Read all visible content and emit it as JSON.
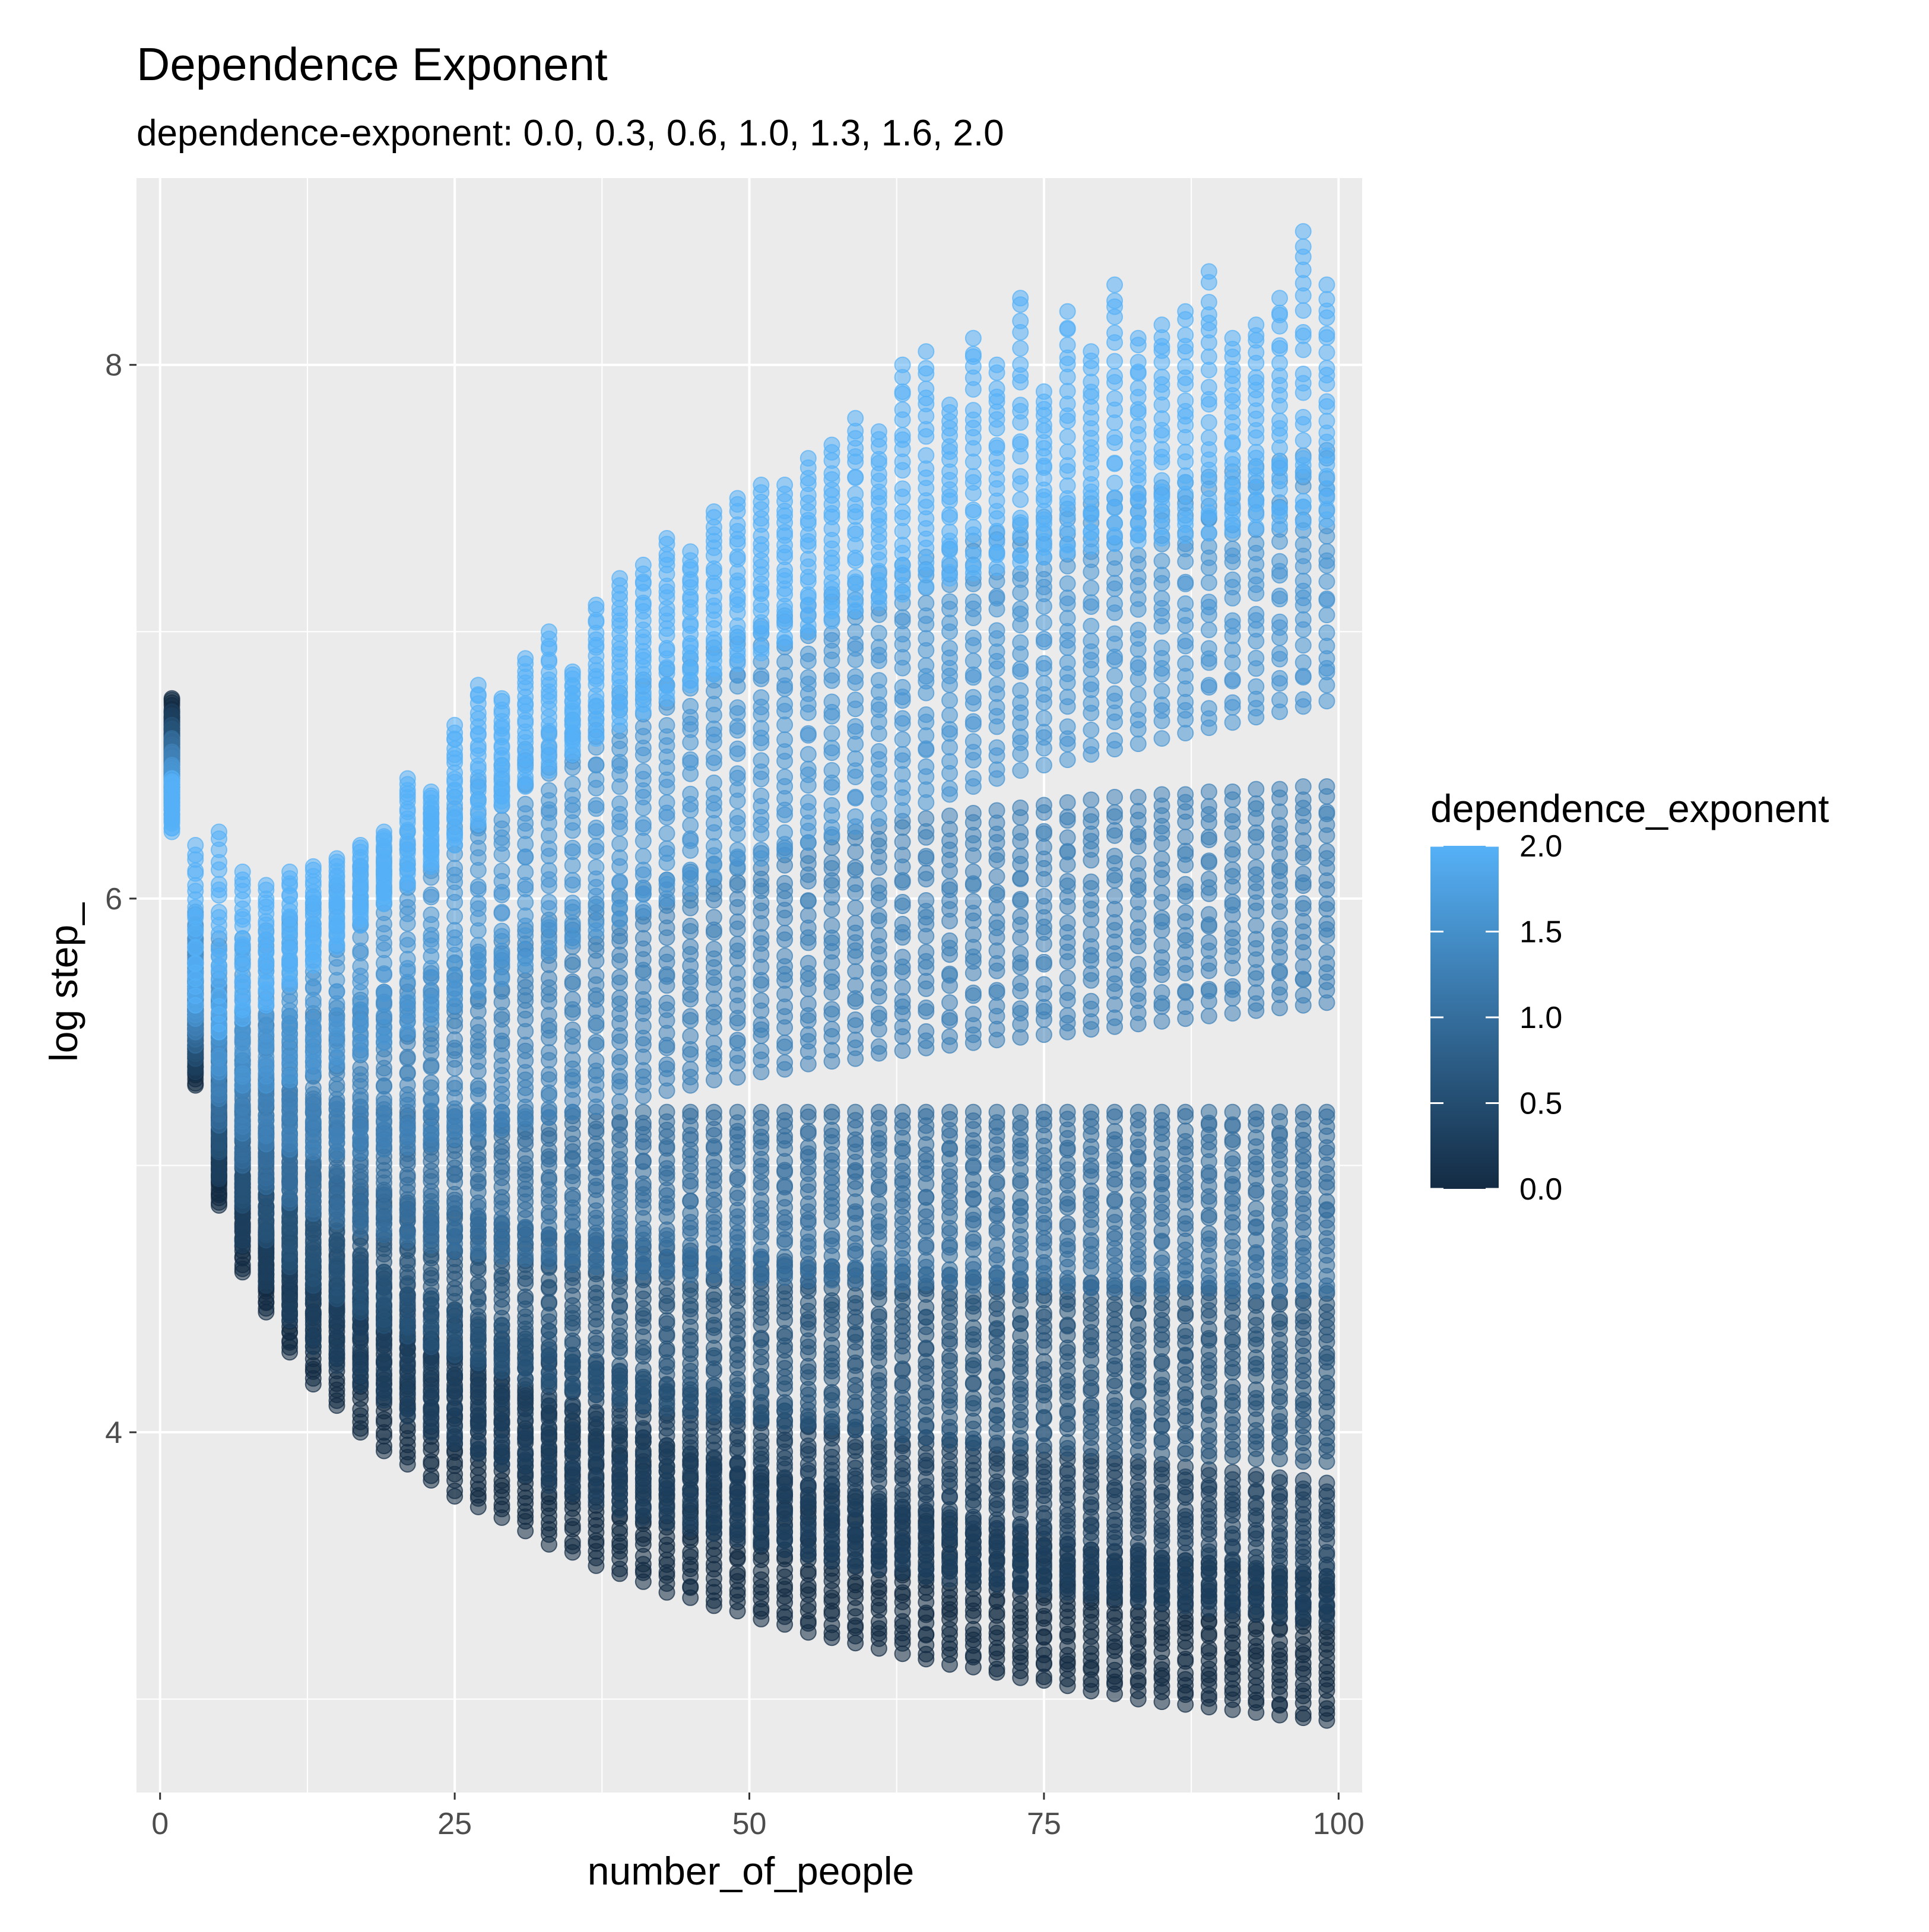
{
  "chart_data": {
    "type": "scatter",
    "title": "Dependence Exponent",
    "subtitle": "dependence-exponent: 0.0, 0.3, 0.6, 1.0, 1.3, 1.6, 2.0",
    "xlabel": "number_of_people",
    "ylabel": "log step_",
    "xlim": [
      -2,
      102
    ],
    "ylim": [
      2.65,
      8.7
    ],
    "x_ticks": [
      0,
      25,
      50,
      75,
      100
    ],
    "x_tick_labels": [
      "0",
      "25",
      "50",
      "75",
      "100"
    ],
    "x_minor_ticks": [
      12.5,
      37.5,
      62.5,
      87.5
    ],
    "y_ticks": [
      4,
      6,
      8
    ],
    "y_tick_labels": [
      "4",
      "6",
      "8"
    ],
    "y_minor_ticks": [
      3,
      5,
      7
    ],
    "grid": true,
    "point_alpha": 0.55,
    "colorbar": {
      "title": "dependence_exponent",
      "min": 0.0,
      "max": 2.0,
      "ticks": [
        0.0,
        0.5,
        1.0,
        1.5,
        2.0
      ],
      "tick_labels": [
        "0.0",
        "0.5",
        "1.0",
        "1.5",
        "2.0"
      ],
      "low_color": "#132b43",
      "high_color": "#56b1f7",
      "placement": "right"
    },
    "colors": {
      "panel_background": "#ebebeb",
      "grid_major": "#ffffff",
      "grid_minor": "#ffffff",
      "axis_text": "#4d4d4d",
      "title_text": "#000000"
    },
    "x_values": [
      1,
      3,
      5,
      7,
      9,
      11,
      13,
      15,
      17,
      19,
      21,
      23,
      25,
      27,
      29,
      31,
      33,
      35,
      37,
      39,
      41,
      43,
      45,
      47,
      49,
      51,
      53,
      55,
      57,
      59,
      61,
      63,
      65,
      67,
      69,
      71,
      73,
      75,
      77,
      79,
      81,
      83,
      85,
      87,
      89,
      91,
      93,
      95,
      97,
      99
    ],
    "series": [
      {
        "dependence_exponent": 0.0,
        "x": [
          1,
          3,
          5,
          7,
          9,
          11,
          13,
          15,
          17,
          19,
          21,
          23,
          25,
          27,
          29,
          31,
          33,
          35,
          37,
          39,
          41,
          43,
          45,
          47,
          49,
          51,
          53,
          55,
          57,
          59,
          61,
          63,
          65,
          67,
          69,
          71,
          73,
          75,
          77,
          79,
          81,
          83,
          85,
          87,
          89,
          91,
          93,
          95,
          97,
          99
        ],
        "y_min": [
          6.55,
          5.3,
          4.85,
          4.6,
          4.45,
          4.3,
          4.18,
          4.1,
          4.0,
          3.93,
          3.88,
          3.82,
          3.76,
          3.72,
          3.68,
          3.63,
          3.58,
          3.55,
          3.5,
          3.47,
          3.44,
          3.4,
          3.38,
          3.35,
          3.33,
          3.3,
          3.28,
          3.25,
          3.23,
          3.21,
          3.19,
          3.17,
          3.15,
          3.13,
          3.12,
          3.1,
          3.08,
          3.07,
          3.05,
          3.03,
          3.02,
          3.0,
          2.99,
          2.98,
          2.97,
          2.96,
          2.95,
          2.94,
          2.93,
          2.92
        ],
        "y_max": [
          6.75,
          5.55,
          5.1,
          4.95,
          4.75,
          4.65,
          4.6,
          4.55,
          4.5,
          4.45,
          4.4,
          4.35,
          4.3,
          4.25,
          4.2,
          4.15,
          4.1,
          4.08,
          4.05,
          4.0,
          3.98,
          3.95,
          3.92,
          3.9,
          3.88,
          3.85,
          3.83,
          3.8,
          3.78,
          3.76,
          3.74,
          3.72,
          3.7,
          3.68,
          3.66,
          3.64,
          3.62,
          3.6,
          3.58,
          3.56,
          3.55,
          3.54,
          3.53,
          3.52,
          3.51,
          3.5,
          3.49,
          3.48,
          3.47,
          3.46
        ]
      },
      {
        "dependence_exponent": 0.3,
        "x": [
          1,
          3,
          5,
          7,
          9,
          11,
          13,
          15,
          17,
          19,
          21,
          23,
          25,
          27,
          29,
          31,
          33,
          35,
          37,
          39,
          41,
          43,
          45,
          47,
          49,
          51,
          53,
          55,
          57,
          59,
          61,
          63,
          65,
          67,
          69,
          71,
          73,
          75,
          77,
          79,
          81,
          83,
          85,
          87,
          89,
          91,
          93,
          95,
          97,
          99
        ],
        "y_min": [
          6.5,
          5.35,
          4.95,
          4.7,
          4.55,
          4.42,
          4.32,
          4.25,
          4.18,
          4.12,
          4.06,
          4.0,
          3.96,
          3.92,
          3.88,
          3.84,
          3.8,
          3.77,
          3.74,
          3.71,
          3.68,
          3.66,
          3.64,
          3.62,
          3.6,
          3.58,
          3.56,
          3.54,
          3.52,
          3.5,
          3.49,
          3.48,
          3.46,
          3.45,
          3.44,
          3.43,
          3.42,
          3.41,
          3.4,
          3.39,
          3.38,
          3.37,
          3.36,
          3.35,
          3.34,
          3.33,
          3.32,
          3.31,
          3.3,
          3.29
        ],
        "y_max": [
          6.7,
          5.6,
          5.2,
          5.05,
          4.95,
          4.85,
          4.78,
          4.72,
          4.66,
          4.6,
          4.55,
          4.5,
          4.46,
          4.42,
          4.38,
          4.35,
          4.32,
          4.29,
          4.26,
          4.23,
          4.2,
          4.18,
          4.16,
          4.14,
          4.12,
          4.1,
          4.08,
          4.06,
          4.04,
          4.02,
          4.0,
          3.99,
          3.98,
          3.97,
          3.96,
          3.95,
          3.94,
          3.93,
          3.92,
          3.91,
          3.9,
          3.89,
          3.88,
          3.87,
          3.86,
          3.85,
          3.84,
          3.83,
          3.82,
          3.81
        ]
      },
      {
        "dependence_exponent": 0.6,
        "x": [
          1,
          3,
          5,
          7,
          9,
          11,
          13,
          15,
          17,
          19,
          21,
          23,
          25,
          27,
          29,
          31,
          33,
          35,
          37,
          39,
          41,
          43,
          45,
          47,
          49,
          51,
          53,
          55,
          57,
          59,
          61,
          63,
          65,
          67,
          69,
          71,
          73,
          75,
          77,
          79,
          81,
          83,
          85,
          87,
          89,
          91,
          93,
          95,
          97,
          99
        ],
        "y_min": [
          6.45,
          5.4,
          5.05,
          4.85,
          4.72,
          4.62,
          4.55,
          4.5,
          4.45,
          4.4,
          4.36,
          4.32,
          4.29,
          4.26,
          4.23,
          4.2,
          4.18,
          4.16,
          4.14,
          4.12,
          4.1,
          4.09,
          4.08,
          4.07,
          4.06,
          4.05,
          4.04,
          4.03,
          4.02,
          4.01,
          4.0,
          3.99,
          3.98,
          3.97,
          3.96,
          3.96,
          3.95,
          3.95,
          3.94,
          3.94,
          3.93,
          3.93,
          3.92,
          3.92,
          3.91,
          3.91,
          3.9,
          3.9,
          3.89,
          3.89
        ],
        "y_max": [
          6.65,
          5.7,
          5.35,
          5.2,
          5.12,
          5.05,
          5.0,
          4.96,
          4.92,
          4.89,
          4.86,
          4.84,
          4.82,
          4.8,
          4.78,
          4.76,
          4.74,
          4.73,
          4.72,
          4.71,
          4.7,
          4.69,
          4.68,
          4.67,
          4.66,
          4.65,
          4.64,
          4.63,
          4.62,
          4.61,
          4.6,
          4.6,
          4.59,
          4.59,
          4.58,
          4.58,
          4.57,
          4.57,
          4.56,
          4.56,
          4.55,
          4.55,
          4.55,
          4.54,
          4.54,
          4.54,
          4.53,
          4.53,
          4.53,
          4.52
        ]
      },
      {
        "dependence_exponent": 1.0,
        "x": [
          1,
          3,
          5,
          7,
          9,
          11,
          13,
          15,
          17,
          19,
          21,
          23,
          25,
          27,
          29,
          31,
          33,
          35,
          37,
          39,
          41,
          43,
          45,
          47,
          49,
          51,
          53,
          55,
          57,
          59,
          61,
          63,
          65,
          67,
          69,
          71,
          73,
          75,
          77,
          79,
          81,
          83,
          85,
          87,
          89,
          91,
          93,
          95,
          97,
          99
        ],
        "y_min": [
          6.4,
          5.45,
          5.15,
          5.0,
          4.92,
          4.86,
          4.82,
          4.79,
          4.76,
          4.74,
          4.72,
          4.7,
          4.68,
          4.67,
          4.66,
          4.65,
          4.64,
          4.63,
          4.62,
          4.61,
          4.6,
          4.6,
          4.59,
          4.59,
          4.58,
          4.58,
          4.58,
          4.57,
          4.57,
          4.57,
          4.56,
          4.56,
          4.56,
          4.56,
          4.55,
          4.55,
          4.55,
          4.55,
          4.55,
          4.54,
          4.54,
          4.54,
          4.54,
          4.54,
          4.54,
          4.53,
          4.53,
          4.53,
          4.53,
          4.53
        ],
        "y_max": [
          6.6,
          5.8,
          5.5,
          5.38,
          5.32,
          5.28,
          5.25,
          5.23,
          5.22,
          5.21,
          5.2,
          5.2,
          5.2,
          5.2,
          5.2,
          5.2,
          5.2,
          5.2,
          5.2,
          5.2,
          5.2,
          5.2,
          5.2,
          5.2,
          5.2,
          5.2,
          5.2,
          5.2,
          5.2,
          5.2,
          5.2,
          5.2,
          5.2,
          5.2,
          5.2,
          5.2,
          5.2,
          5.2,
          5.2,
          5.2,
          5.2,
          5.2,
          5.2,
          5.2,
          5.2,
          5.2,
          5.2,
          5.2,
          5.2,
          5.2
        ]
      },
      {
        "dependence_exponent": 1.3,
        "x": [
          1,
          3,
          5,
          7,
          9,
          11,
          13,
          15,
          17,
          19,
          21,
          23,
          25,
          27,
          29,
          31,
          33,
          35,
          37,
          39,
          41,
          43,
          45,
          47,
          49,
          51,
          53,
          55,
          57,
          59,
          61,
          63,
          65,
          67,
          69,
          71,
          73,
          75,
          77,
          79,
          81,
          83,
          85,
          87,
          89,
          91,
          93,
          95,
          97,
          99
        ],
        "y_min": [
          6.35,
          5.5,
          5.25,
          5.12,
          5.08,
          5.06,
          5.05,
          5.05,
          5.05,
          5.06,
          5.07,
          5.08,
          5.1,
          5.12,
          5.14,
          5.16,
          5.18,
          5.2,
          5.22,
          5.24,
          5.26,
          5.28,
          5.3,
          5.32,
          5.33,
          5.35,
          5.36,
          5.38,
          5.39,
          5.4,
          5.42,
          5.43,
          5.44,
          5.45,
          5.46,
          5.47,
          5.48,
          5.49,
          5.5,
          5.51,
          5.52,
          5.53,
          5.54,
          5.55,
          5.56,
          5.57,
          5.58,
          5.59,
          5.6,
          5.61
        ],
        "y_max": [
          6.55,
          5.85,
          5.65,
          5.58,
          5.56,
          5.56,
          5.57,
          5.59,
          5.62,
          5.65,
          5.68,
          5.72,
          5.76,
          5.8,
          5.84,
          5.88,
          5.92,
          5.95,
          5.98,
          6.01,
          6.04,
          6.07,
          6.1,
          6.13,
          6.15,
          6.17,
          6.19,
          6.21,
          6.23,
          6.25,
          6.27,
          6.29,
          6.3,
          6.31,
          6.32,
          6.33,
          6.34,
          6.35,
          6.36,
          6.37,
          6.38,
          6.38,
          6.39,
          6.39,
          6.4,
          6.4,
          6.41,
          6.41,
          6.42,
          6.42
        ]
      },
      {
        "dependence_exponent": 1.6,
        "x": [
          1,
          3,
          5,
          7,
          9,
          11,
          13,
          15,
          17,
          19,
          21,
          23,
          25,
          27,
          29,
          31,
          33,
          35,
          37,
          39,
          41,
          43,
          45,
          47,
          49,
          51,
          53,
          55,
          57,
          59,
          61,
          63,
          65,
          67,
          69,
          71,
          73,
          75,
          77,
          79,
          81,
          83,
          85,
          87,
          89,
          91,
          93,
          95,
          97,
          99
        ],
        "y_min": [
          6.3,
          5.55,
          5.35,
          5.3,
          5.3,
          5.32,
          5.35,
          5.38,
          5.42,
          5.46,
          5.5,
          5.55,
          5.6,
          5.65,
          5.7,
          5.75,
          5.8,
          5.84,
          5.88,
          5.92,
          5.96,
          6.0,
          6.04,
          6.08,
          6.12,
          6.15,
          6.18,
          6.21,
          6.24,
          6.27,
          6.3,
          6.33,
          6.36,
          6.39,
          6.42,
          6.45,
          6.48,
          6.5,
          6.52,
          6.54,
          6.56,
          6.58,
          6.6,
          6.62,
          6.64,
          6.66,
          6.68,
          6.7,
          6.72,
          6.74
        ],
        "y_max": [
          6.5,
          5.95,
          5.85,
          5.85,
          5.88,
          5.92,
          5.98,
          6.05,
          6.12,
          6.18,
          6.25,
          6.32,
          6.38,
          6.44,
          6.5,
          6.56,
          6.62,
          6.67,
          6.72,
          6.77,
          6.82,
          6.86,
          6.9,
          6.94,
          6.98,
          7.02,
          7.06,
          7.1,
          7.14,
          7.18,
          7.22,
          7.25,
          7.28,
          7.31,
          7.34,
          7.37,
          7.4,
          7.43,
          7.46,
          7.48,
          7.5,
          7.52,
          7.54,
          7.56,
          7.58,
          7.6,
          7.62,
          7.64,
          7.66,
          7.68
        ]
      },
      {
        "dependence_exponent": 2.0,
        "x": [
          1,
          3,
          5,
          7,
          9,
          11,
          13,
          15,
          17,
          19,
          21,
          23,
          25,
          27,
          29,
          31,
          33,
          35,
          37,
          39,
          41,
          43,
          45,
          47,
          49,
          51,
          53,
          55,
          57,
          59,
          61,
          63,
          65,
          67,
          69,
          71,
          73,
          75,
          77,
          79,
          81,
          83,
          85,
          87,
          89,
          91,
          93,
          95,
          97,
          99
        ],
        "y_min": [
          6.25,
          5.6,
          5.5,
          5.55,
          5.6,
          5.68,
          5.75,
          5.82,
          5.9,
          5.98,
          6.05,
          6.12,
          6.2,
          6.28,
          6.35,
          6.42,
          6.48,
          6.54,
          6.6,
          6.65,
          6.7,
          6.75,
          6.8,
          6.84,
          6.88,
          6.92,
          6.96,
          7.0,
          7.04,
          7.08,
          7.11,
          7.14,
          7.17,
          7.2,
          7.22,
          7.24,
          7.26,
          7.28,
          7.3,
          7.32,
          7.33,
          7.34,
          7.35,
          7.36,
          7.37,
          7.38,
          7.39,
          7.4,
          7.41,
          7.42
        ],
        "y_max": [
          6.45,
          6.2,
          6.25,
          6.1,
          6.05,
          6.1,
          6.12,
          6.15,
          6.2,
          6.25,
          6.45,
          6.4,
          6.65,
          6.8,
          6.75,
          6.9,
          7.0,
          6.85,
          7.1,
          7.2,
          7.25,
          7.35,
          7.3,
          7.45,
          7.5,
          7.55,
          7.55,
          7.65,
          7.7,
          7.8,
          7.75,
          8.0,
          8.05,
          7.85,
          8.1,
          8.0,
          8.25,
          7.9,
          8.2,
          8.05,
          8.3,
          8.1,
          8.15,
          8.2,
          8.35,
          8.1,
          8.15,
          8.25,
          8.5,
          8.3
        ]
      }
    ]
  }
}
